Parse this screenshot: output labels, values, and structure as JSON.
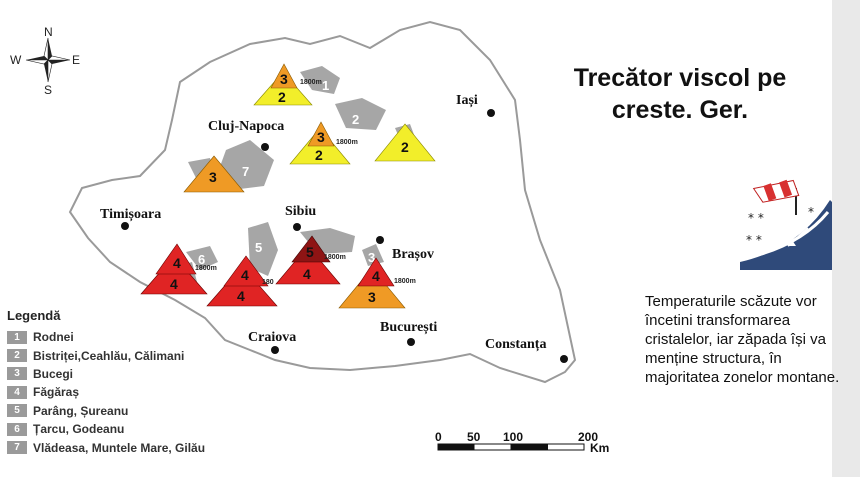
{
  "title": "Trecător viscol pe creste. Ger.",
  "description": "Temperaturile scăzute vor încetini transformarea cristalelor, iar zăpada își va menține structura, în majoritatea zonelor montane.",
  "legend": {
    "title": "Legendă",
    "items": [
      {
        "num": "1",
        "label": "Rodnei"
      },
      {
        "num": "2",
        "label": "Bistriței,Ceahlău, Călimani"
      },
      {
        "num": "3",
        "label": "Bucegi"
      },
      {
        "num": "4",
        "label": "Făgăraș"
      },
      {
        "num": "5",
        "label": "Parâng, Șureanu"
      },
      {
        "num": "6",
        "label": "Țarcu, Godeanu"
      },
      {
        "num": "7",
        "label": "Vlădeasa, Muntele Mare, Gilău"
      }
    ]
  },
  "compass": {
    "n": "N",
    "s": "S",
    "e": "E",
    "w": "W"
  },
  "cities": [
    {
      "name": "Cluj-Napoca"
    },
    {
      "name": "Iași"
    },
    {
      "name": "Timișoara"
    },
    {
      "name": "Sibiu"
    },
    {
      "name": "Brașov"
    },
    {
      "name": "Craiova"
    },
    {
      "name": "București"
    },
    {
      "name": "Constanța"
    }
  ],
  "altitude_label": "1800m",
  "scale": {
    "ticks": [
      "0",
      "50",
      "100",
      "200"
    ],
    "unit": "Km"
  },
  "colors": {
    "level_2": "#f2ee2a",
    "level_3": "#ef9a25",
    "level_4": "#e02424",
    "level_5": "#8e1414",
    "massif": "#a6a6a6",
    "border": "#9a9a9a"
  },
  "risk_markers": [
    {
      "massif": "Rodnei",
      "lower": "2",
      "upper": "3"
    },
    {
      "massif": "Călimani",
      "lower": "2",
      "upper": "3"
    },
    {
      "massif": "Bistriței, Ceahlău",
      "lower": "2",
      "upper": ""
    },
    {
      "massif": "Vlădeasa, Muntele Mare, Gilău",
      "lower": "3",
      "upper": ""
    },
    {
      "massif": "Țarcu, Godeanu",
      "lower": "4",
      "upper": "4"
    },
    {
      "massif": "Parâng, Șureanu",
      "lower": "4",
      "upper": "4"
    },
    {
      "massif": "Făgăraș",
      "lower": "4",
      "upper": "5"
    },
    {
      "massif": "Bucegi",
      "lower": "3",
      "upper": "4"
    }
  ],
  "icon": "windsock-snow-icon"
}
